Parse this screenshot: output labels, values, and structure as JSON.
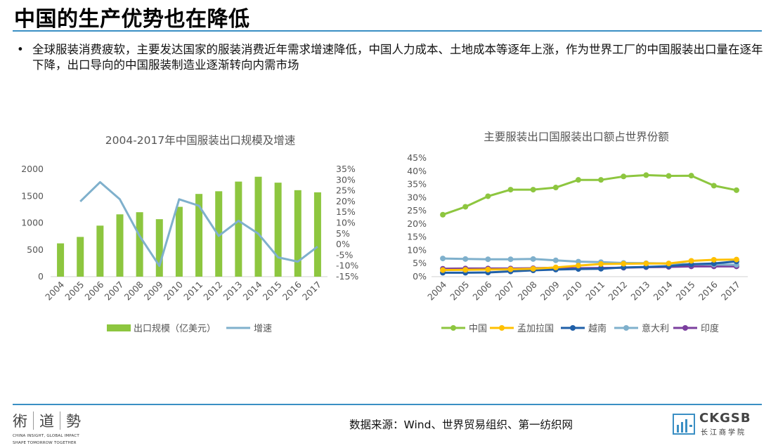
{
  "header": {
    "title": "中国的生产优势也在降低",
    "bullet_symbol": "•",
    "bullet": "全球服装消费疲软，主要发达国家的服装消费近年需求增速降低，中国人力成本、土地成本等逐年上涨，作为世界工厂的中国服装出口量在逐年下降，出口导向的中国服装制造业逐渐转向内需市场"
  },
  "chart_data": [
    {
      "type": "bar",
      "title": "2004-2017年中国服装出口规模及增速",
      "categories": [
        "2004",
        "2005",
        "2006",
        "2007",
        "2008",
        "2009",
        "2010",
        "2011",
        "2012",
        "2013",
        "2014",
        "2015",
        "2016",
        "2017"
      ],
      "series": [
        {
          "name": "出口规模（亿美元）",
          "type": "bar",
          "axis": "left",
          "color": "#8dc63f",
          "values": [
            620,
            740,
            950,
            1160,
            1200,
            1070,
            1300,
            1540,
            1590,
            1770,
            1860,
            1750,
            1610,
            1570
          ]
        },
        {
          "name": "增速",
          "type": "line",
          "axis": "right",
          "color": "#7fb0cc",
          "values": [
            null,
            20,
            29,
            21,
            4,
            -10,
            21,
            18,
            4,
            11,
            5,
            -6,
            -8,
            -1
          ]
        }
      ],
      "y_left": {
        "min": 0,
        "max": 2000,
        "ticks": [
          0,
          500,
          1000,
          1500,
          2000
        ],
        "tick_labels": [
          "0",
          "500",
          "1000",
          "1500",
          "2000"
        ]
      },
      "y_right": {
        "min": -15,
        "max": 35,
        "ticks": [
          -15,
          -10,
          -5,
          0,
          5,
          10,
          15,
          20,
          25,
          30,
          35
        ],
        "tick_labels": [
          "-15%",
          "-10%",
          "-5%",
          "0%",
          "5%",
          "10%",
          "15%",
          "20%",
          "25%",
          "30%",
          "35%"
        ]
      },
      "legend_position": "bottom",
      "grid": false
    },
    {
      "type": "line",
      "title": "主要服装出口国服装出口额占世界份额",
      "categories": [
        "2004",
        "2005",
        "2006",
        "2007",
        "2008",
        "2009",
        "2010",
        "2011",
        "2012",
        "2013",
        "2014",
        "2015",
        "2016",
        "2017"
      ],
      "series": [
        {
          "name": "中国",
          "color": "#8dc63f",
          "values": [
            23.5,
            26.5,
            30.5,
            33,
            33,
            33.8,
            36.7,
            36.7,
            38,
            38.5,
            38.2,
            38.3,
            34.5,
            32.8
          ]
        },
        {
          "name": "孟加拉国",
          "color": "#ffc000",
          "values": [
            2.5,
            2.6,
            2.7,
            2.8,
            3.0,
            3.5,
            4.2,
            4.8,
            4.9,
            5.0,
            5.0,
            6.0,
            6.4,
            6.5
          ]
        },
        {
          "name": "越南",
          "color": "#1f5fa8",
          "values": [
            1.5,
            1.5,
            1.6,
            2.0,
            2.4,
            2.7,
            2.9,
            3.0,
            3.5,
            3.7,
            4.0,
            4.7,
            5.0,
            5.8
          ]
        },
        {
          "name": "意大利",
          "color": "#7fb0cc",
          "values": [
            6.9,
            6.7,
            6.6,
            6.6,
            6.7,
            6.2,
            5.7,
            5.5,
            5.2,
            5.1,
            5.0,
            4.7,
            4.6,
            4.5
          ]
        },
        {
          "name": "印度",
          "color": "#7b3f9e",
          "values": [
            3.0,
            3.1,
            3.1,
            3.1,
            3.2,
            3.4,
            3.2,
            3.3,
            3.4,
            3.6,
            3.7,
            3.9,
            3.9,
            3.9
          ]
        }
      ],
      "y": {
        "min": 0,
        "max": 45,
        "ticks": [
          0,
          5,
          10,
          15,
          20,
          25,
          30,
          35,
          40,
          45
        ],
        "tick_labels": [
          "0%",
          "5%",
          "10%",
          "15%",
          "20%",
          "25%",
          "30%",
          "35%",
          "40%",
          "45%"
        ]
      },
      "legend_position": "bottom",
      "grid": false
    }
  ],
  "footer": {
    "source": "数据来源：Wind、世界贸易组织、第一纺织网",
    "left_logo_glyphs": [
      "術",
      "道",
      "勢"
    ],
    "left_logo_tagline_1": "CHINA INSIGHT, GLOBAL IMPACT",
    "left_logo_tagline_2": "SHAPE TOMORROW TOGETHER",
    "right_logo_name": "CKGSB",
    "right_logo_sub": "长江商学院"
  },
  "colors": {
    "accent": "#3a8fc4",
    "green": "#8dc63f",
    "lightblue": "#7fb0cc"
  }
}
